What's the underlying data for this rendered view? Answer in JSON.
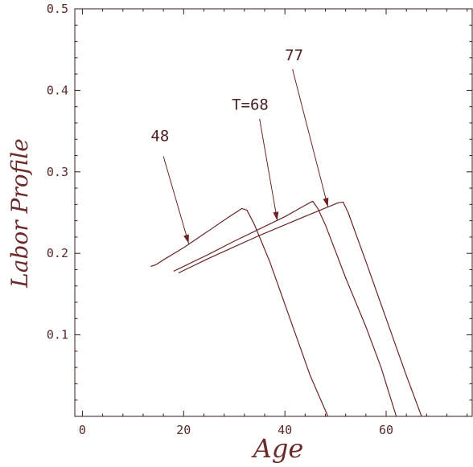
{
  "chart_data": {
    "type": "line",
    "xlabel": "Age",
    "ylabel": "Labor Profile",
    "xlim": [
      -1.5,
      77
    ],
    "ylim": [
      0,
      0.5
    ],
    "x_ticks": [
      0,
      20,
      40,
      60
    ],
    "x_tick_labels": [
      "0",
      "20",
      "40",
      "60"
    ],
    "y_ticks": [
      0.1,
      0.2,
      0.3,
      0.4,
      0.5
    ],
    "y_tick_labels": [
      "0.1",
      "0.2",
      "0.3",
      "0.4",
      "0.5"
    ],
    "grid": false,
    "colors": {
      "series": "#6b2525",
      "text": "#5b2a2a",
      "axis": "#3a1a1a"
    },
    "series": [
      {
        "x": [
          13.5,
          14.5,
          16,
          20,
          25,
          29,
          31,
          31.5,
          32.5,
          34,
          37,
          41,
          45,
          48.5
        ],
        "y": [
          0.184,
          0.186,
          0.192,
          0.207,
          0.228,
          0.245,
          0.253,
          0.255,
          0.253,
          0.235,
          0.19,
          0.12,
          0.05,
          0
        ]
      },
      {
        "x": [
          18,
          19,
          25,
          30,
          35,
          40,
          44,
          45.5,
          46.5,
          48,
          52,
          56,
          59,
          62
        ],
        "y": [
          0.178,
          0.181,
          0.199,
          0.215,
          0.23,
          0.245,
          0.259,
          0.264,
          0.255,
          0.235,
          0.17,
          0.11,
          0.06,
          0
        ]
      },
      {
        "x": [
          19,
          20,
          25,
          30,
          35,
          40,
          45,
          50.5,
          51.5,
          52.5,
          56,
          60,
          64,
          67
        ],
        "y": [
          0.176,
          0.179,
          0.194,
          0.208,
          0.222,
          0.235,
          0.248,
          0.262,
          0.263,
          0.25,
          0.19,
          0.12,
          0.05,
          0
        ]
      }
    ],
    "annotations": [
      {
        "text": "48",
        "text_x": 13.5,
        "text_y": 0.338,
        "arrow_from": [
          16,
          0.319
        ],
        "arrow_to": [
          21,
          0.212
        ]
      },
      {
        "text": "T=68",
        "text_x": 29.5,
        "text_y": 0.376,
        "arrow_from": [
          35,
          0.365
        ],
        "arrow_to": [
          38.5,
          0.24
        ]
      },
      {
        "text": "77",
        "text_x": 40,
        "text_y": 0.437,
        "arrow_from": [
          41.5,
          0.426
        ],
        "arrow_to": [
          48.5,
          0.257
        ]
      }
    ]
  }
}
